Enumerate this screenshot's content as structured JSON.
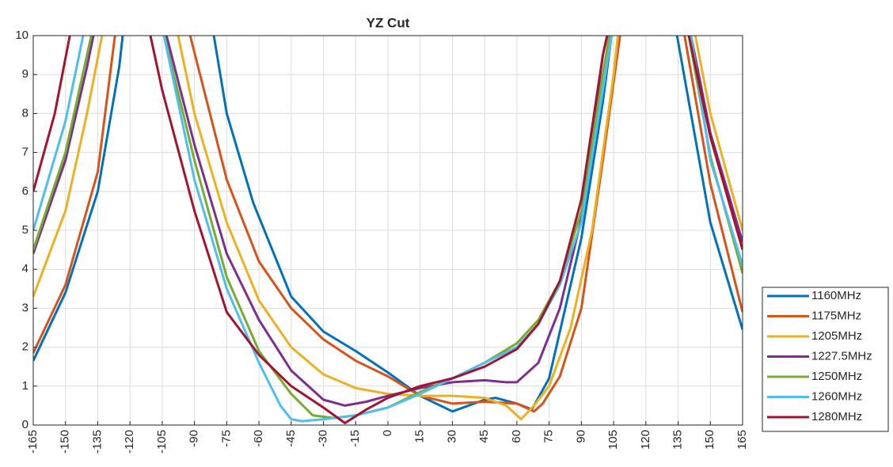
{
  "chart_data": {
    "type": "line",
    "title": "YZ Cut",
    "xlim": [
      -165,
      165
    ],
    "ylim": [
      0,
      10
    ],
    "xticks": [
      -165,
      -150,
      -135,
      -120,
      -105,
      -90,
      -75,
      -60,
      -45,
      -30,
      -15,
      0,
      15,
      30,
      45,
      60,
      75,
      90,
      105,
      120,
      135,
      150,
      165
    ],
    "yticks": [
      0,
      1,
      2,
      3,
      4,
      5,
      6,
      7,
      8,
      9,
      10
    ],
    "grid": true,
    "legend": "right",
    "series": [
      {
        "name": "1160MHz",
        "color": "#0072BD",
        "x": [
          -165,
          -150,
          -135,
          -125,
          -123.4,
          null,
          -81,
          -75,
          -62.6,
          -45,
          -30,
          -15,
          0,
          15,
          30,
          45,
          50,
          60,
          67,
          75,
          80,
          90,
          100,
          104,
          null,
          134.5,
          140,
          150,
          165
        ],
        "values": [
          1.65,
          3.4,
          6.0,
          9.2,
          10,
          null,
          10,
          8.0,
          5.7,
          3.3,
          2.4,
          1.9,
          1.35,
          0.75,
          0.35,
          0.65,
          0.7,
          0.55,
          0.4,
          1.2,
          2.4,
          4.8,
          8.3,
          10,
          null,
          10,
          8.3,
          5.2,
          2.45
        ]
      },
      {
        "name": "1175MHz",
        "color": "#D95319",
        "x": [
          -165,
          -150,
          -135,
          -127,
          null,
          -92,
          -75,
          -60,
          -45,
          -30,
          -15,
          0,
          15,
          30,
          45,
          60,
          68,
          72,
          80,
          90,
          100,
          108,
          null,
          138,
          150,
          165
        ],
        "values": [
          1.85,
          3.6,
          6.5,
          10,
          null,
          10,
          6.3,
          4.2,
          3.0,
          2.2,
          1.65,
          1.25,
          0.75,
          0.55,
          0.6,
          0.55,
          0.35,
          0.55,
          1.25,
          3.0,
          6.8,
          10,
          null,
          10,
          6.2,
          2.9
        ]
      },
      {
        "name": "1205MHz",
        "color": "#EDB120",
        "x": [
          -165,
          -150,
          -140,
          -133,
          null,
          -97.6,
          -90,
          -75,
          -60,
          -45,
          -30,
          -15,
          0,
          15,
          30,
          45,
          55,
          62,
          68,
          75,
          85,
          95,
          105,
          107,
          null,
          143,
          150,
          165
        ],
        "values": [
          3.3,
          5.5,
          8.0,
          10,
          null,
          10,
          8.0,
          5.2,
          3.2,
          2.0,
          1.3,
          0.95,
          0.8,
          0.75,
          0.75,
          0.7,
          0.5,
          0.15,
          0.5,
          1.0,
          2.5,
          5.0,
          9.0,
          10,
          null,
          10,
          8.0,
          5.0
        ]
      },
      {
        "name": "1227.5MHz",
        "color": "#7E2F8E",
        "x": [
          -165,
          -150,
          -140,
          -137,
          null,
          -103,
          -90,
          -75,
          -60,
          -45,
          -30,
          -20,
          -10,
          0,
          15,
          30,
          45,
          55,
          60,
          70,
          80,
          90,
          100,
          102,
          null,
          141,
          150,
          165
        ],
        "values": [
          4.4,
          6.8,
          9.2,
          10,
          null,
          10,
          7.2,
          4.4,
          2.7,
          1.4,
          0.65,
          0.5,
          0.6,
          0.75,
          0.95,
          1.1,
          1.15,
          1.1,
          1.1,
          1.6,
          3.0,
          5.3,
          9.5,
          10,
          null,
          10,
          7.5,
          4.7
        ]
      },
      {
        "name": "1250MHz",
        "color": "#77AC30",
        "x": [
          -165,
          -150,
          -140,
          -138,
          null,
          -104,
          -90,
          -75,
          -60,
          -45,
          -35,
          -25,
          -15,
          0,
          15,
          30,
          45,
          60,
          70,
          80,
          90,
          100,
          103,
          null,
          140,
          150,
          165
        ],
        "values": [
          4.5,
          7.0,
          9.5,
          10,
          null,
          10,
          6.8,
          3.8,
          1.9,
          0.8,
          0.25,
          0.18,
          0.25,
          0.45,
          0.85,
          1.2,
          1.6,
          2.1,
          2.7,
          3.7,
          5.5,
          9.0,
          10,
          null,
          10,
          6.9,
          3.9
        ]
      },
      {
        "name": "1260MHz",
        "color": "#4DBEEE",
        "x": [
          -165,
          -150,
          -141.8,
          null,
          -104.2,
          -90,
          -75,
          -60,
          -50,
          -45,
          -40,
          -30,
          -15,
          0,
          15,
          30,
          45,
          60,
          70,
          80,
          90,
          100,
          104,
          null,
          141,
          150,
          165
        ],
        "values": [
          5.0,
          7.8,
          10,
          null,
          10,
          6.3,
          3.5,
          1.6,
          0.5,
          0.15,
          0.1,
          0.15,
          0.25,
          0.45,
          0.8,
          1.2,
          1.6,
          2.0,
          2.6,
          3.6,
          5.2,
          8.6,
          10,
          null,
          10,
          6.8,
          4.1
        ]
      },
      {
        "name": "1280MHz",
        "color": "#A2142F",
        "x": [
          -165,
          -155,
          -148,
          null,
          -110.5,
          -105,
          -90,
          -75,
          -60,
          -45,
          -30,
          -20,
          -10,
          0,
          15,
          30,
          45,
          60,
          70,
          80,
          90,
          100,
          102,
          null,
          140,
          150,
          165
        ],
        "values": [
          6.0,
          8.0,
          10,
          null,
          10,
          8.6,
          5.5,
          2.9,
          1.8,
          1.0,
          0.45,
          0.05,
          0.4,
          0.7,
          1.0,
          1.2,
          1.5,
          1.95,
          2.6,
          3.7,
          5.8,
          9.5,
          10,
          null,
          10,
          7.4,
          4.5
        ]
      }
    ]
  }
}
